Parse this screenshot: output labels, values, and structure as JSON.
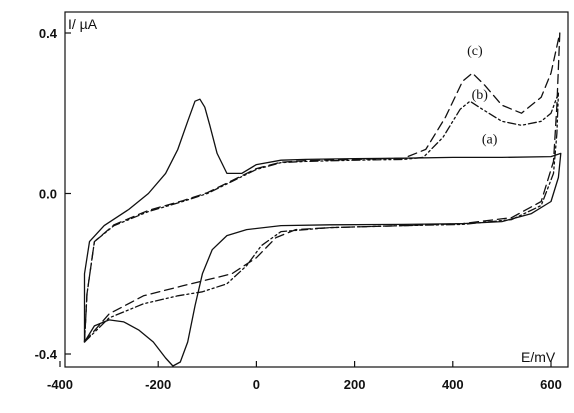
{
  "chart_data": {
    "type": "line",
    "title": "",
    "xlabel": "E/mV",
    "ylabel": "I/ µA",
    "xlim": [
      -400,
      600
    ],
    "ylim": [
      -0.4,
      0.4
    ],
    "x_ticks": [
      "-400",
      "-200",
      "0",
      "200",
      "400",
      "600"
    ],
    "y_ticks": [
      "0.4",
      "0.0",
      "-0.4"
    ],
    "grid": false,
    "legend": "none",
    "annotations": [
      "(a)",
      "(b)",
      "(c)"
    ],
    "series": [
      {
        "name": "(a)",
        "style": "solid",
        "points": [
          [
            -350,
            -0.37
          ],
          [
            -330,
            -0.33
          ],
          [
            -300,
            -0.315
          ],
          [
            -270,
            -0.32
          ],
          [
            -240,
            -0.34
          ],
          [
            -210,
            -0.37
          ],
          [
            -185,
            -0.41
          ],
          [
            -170,
            -0.43
          ],
          [
            -155,
            -0.42
          ],
          [
            -140,
            -0.37
          ],
          [
            -125,
            -0.28
          ],
          [
            -110,
            -0.2
          ],
          [
            -90,
            -0.14
          ],
          [
            -60,
            -0.105
          ],
          [
            -20,
            -0.09
          ],
          [
            50,
            -0.08
          ],
          [
            150,
            -0.078
          ],
          [
            300,
            -0.077
          ],
          [
            420,
            -0.075
          ],
          [
            500,
            -0.07
          ],
          [
            560,
            -0.05
          ],
          [
            600,
            -0.02
          ],
          [
            615,
            0.04
          ],
          [
            620,
            0.1
          ],
          [
            600,
            0.092
          ],
          [
            500,
            0.09
          ],
          [
            400,
            0.09
          ],
          [
            300,
            0.088
          ],
          [
            200,
            0.087
          ],
          [
            100,
            0.085
          ],
          [
            50,
            0.083
          ],
          [
            0,
            0.072
          ],
          [
            -30,
            0.05
          ],
          [
            -60,
            0.05
          ],
          [
            -80,
            0.1
          ],
          [
            -95,
            0.17
          ],
          [
            -105,
            0.215
          ],
          [
            -115,
            0.235
          ],
          [
            -125,
            0.23
          ],
          [
            -140,
            0.18
          ],
          [
            -160,
            0.11
          ],
          [
            -185,
            0.05
          ],
          [
            -220,
            0.0
          ],
          [
            -260,
            -0.04
          ],
          [
            -310,
            -0.08
          ],
          [
            -340,
            -0.12
          ],
          [
            -350,
            -0.2
          ],
          [
            -350,
            -0.37
          ]
        ]
      },
      {
        "name": "(b)",
        "style": "dash-dot-dot",
        "points": [
          [
            -350,
            -0.37
          ],
          [
            -300,
            -0.31
          ],
          [
            -230,
            -0.275
          ],
          [
            -160,
            -0.255
          ],
          [
            -110,
            -0.245
          ],
          [
            -60,
            -0.225
          ],
          [
            -20,
            -0.18
          ],
          [
            10,
            -0.13
          ],
          [
            50,
            -0.095
          ],
          [
            150,
            -0.085
          ],
          [
            300,
            -0.08
          ],
          [
            420,
            -0.077
          ],
          [
            520,
            -0.065
          ],
          [
            580,
            -0.03
          ],
          [
            605,
            0.05
          ],
          [
            612,
            0.15
          ],
          [
            615,
            0.25
          ],
          [
            600,
            0.2
          ],
          [
            580,
            0.18
          ],
          [
            540,
            0.17
          ],
          [
            500,
            0.18
          ],
          [
            460,
            0.21
          ],
          [
            435,
            0.23
          ],
          [
            415,
            0.21
          ],
          [
            380,
            0.14
          ],
          [
            340,
            0.09
          ],
          [
            300,
            0.085
          ],
          [
            200,
            0.083
          ],
          [
            100,
            0.08
          ],
          [
            50,
            0.077
          ],
          [
            0,
            0.06
          ],
          [
            -50,
            0.03
          ],
          [
            -100,
            0.0
          ],
          [
            -150,
            -0.02
          ],
          [
            -220,
            -0.045
          ],
          [
            -290,
            -0.08
          ],
          [
            -330,
            -0.12
          ],
          [
            -345,
            -0.25
          ],
          [
            -350,
            -0.37
          ]
        ]
      },
      {
        "name": "(c)",
        "style": "dashed",
        "points": [
          [
            -350,
            -0.37
          ],
          [
            -300,
            -0.3
          ],
          [
            -230,
            -0.255
          ],
          [
            -150,
            -0.23
          ],
          [
            -100,
            -0.215
          ],
          [
            -50,
            -0.2
          ],
          [
            0,
            -0.16
          ],
          [
            40,
            -0.11
          ],
          [
            80,
            -0.09
          ],
          [
            150,
            -0.085
          ],
          [
            300,
            -0.08
          ],
          [
            420,
            -0.075
          ],
          [
            520,
            -0.06
          ],
          [
            580,
            -0.02
          ],
          [
            605,
            0.08
          ],
          [
            612,
            0.22
          ],
          [
            618,
            0.4
          ],
          [
            600,
            0.3
          ],
          [
            580,
            0.24
          ],
          [
            540,
            0.2
          ],
          [
            500,
            0.22
          ],
          [
            465,
            0.27
          ],
          [
            440,
            0.3
          ],
          [
            420,
            0.28
          ],
          [
            385,
            0.19
          ],
          [
            345,
            0.11
          ],
          [
            300,
            0.088
          ],
          [
            200,
            0.085
          ],
          [
            100,
            0.082
          ],
          [
            50,
            0.078
          ],
          [
            0,
            0.062
          ],
          [
            -50,
            0.032
          ],
          [
            -100,
            0.002
          ],
          [
            -150,
            -0.018
          ],
          [
            -220,
            -0.042
          ],
          [
            -290,
            -0.078
          ],
          [
            -330,
            -0.12
          ],
          [
            -345,
            -0.25
          ],
          [
            -350,
            -0.37
          ]
        ]
      }
    ],
    "label_positions": [
      {
        "text_index": 0,
        "x": 475,
        "y": 0.125
      },
      {
        "text_index": 1,
        "x": 455,
        "y": 0.235
      },
      {
        "text_index": 2,
        "x": 445,
        "y": 0.345
      }
    ]
  }
}
